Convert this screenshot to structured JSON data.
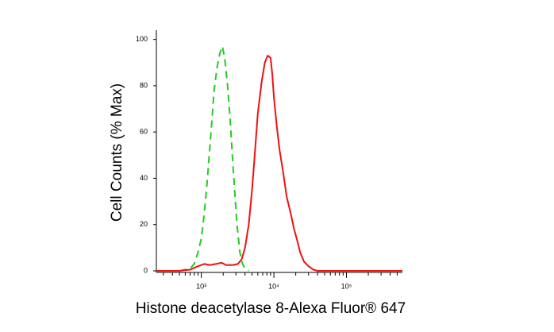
{
  "chart_data": {
    "type": "line",
    "y_label": "Cell Counts (% Max)",
    "x_label": "Histone deacetylase 8-Alexa Fluor® 647",
    "xscale": "log",
    "xlim": [
      240,
      590000
    ],
    "ylim": [
      0,
      104
    ],
    "xticks": [
      {
        "value": 1000,
        "label": "10³"
      },
      {
        "value": 10000,
        "label": "10⁴"
      },
      {
        "value": 100000,
        "label": "10⁵"
      }
    ],
    "x_minor_ticks": [
      300,
      400,
      500,
      600,
      700,
      800,
      900,
      2000,
      3000,
      4000,
      5000,
      6000,
      7000,
      8000,
      9000,
      20000,
      30000,
      40000,
      50000,
      60000,
      70000,
      80000,
      90000,
      200000,
      300000,
      400000,
      500000
    ],
    "yticks": [
      0,
      20,
      40,
      60,
      80,
      100
    ],
    "series": [
      {
        "color": "#22cc22",
        "dash": true,
        "x": [
          500,
          700,
          800,
          900,
          1000,
          1100,
          1200,
          1300,
          1400,
          1500,
          1650,
          1800,
          1950,
          2100,
          2300,
          2500,
          2700,
          2900,
          3100,
          3400,
          3700,
          4000,
          4500
        ],
        "values": [
          0,
          1,
          3,
          8,
          14,
          25,
          38,
          52,
          65,
          78,
          88,
          94,
          97,
          92,
          80,
          65,
          48,
          33,
          20,
          8,
          3,
          1,
          0
        ]
      },
      {
        "color": "#ee1111",
        "dash": false,
        "x": [
          240,
          500,
          700,
          900,
          1100,
          1300,
          1600,
          1900,
          2200,
          2700,
          3200,
          3600,
          4000,
          4500,
          5000,
          5500,
          6000,
          6800,
          7500,
          8200,
          9000,
          9500,
          10000,
          11000,
          12000,
          13500,
          15000,
          17000,
          19000,
          21000,
          23000,
          26000,
          30000,
          35000,
          40000,
          590000
        ],
        "values": [
          0,
          0,
          0.5,
          2,
          3,
          2.5,
          3,
          3.5,
          2.5,
          2.5,
          3,
          5,
          10,
          20,
          35,
          52,
          68,
          82,
          90,
          93,
          92,
          85,
          75,
          62,
          52,
          42,
          32,
          25,
          18,
          13,
          8,
          4,
          2,
          0.5,
          0,
          0
        ]
      }
    ]
  }
}
